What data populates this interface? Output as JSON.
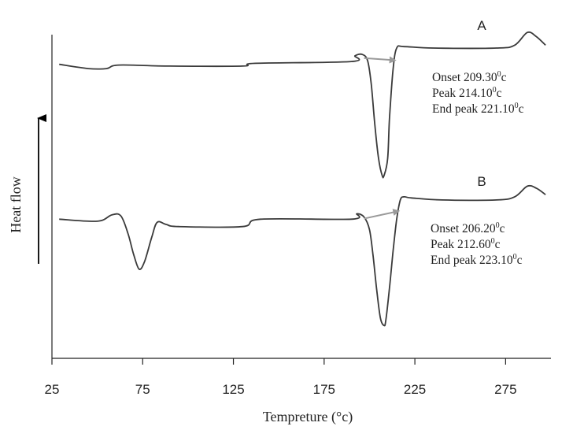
{
  "chart_data": {
    "type": "line",
    "title": "",
    "xlabel": "Tempreture (°c)",
    "ylabel": "Heat flow",
    "xlim": [
      25,
      300
    ],
    "x_ticks": [
      25,
      75,
      125,
      175,
      225,
      275
    ],
    "x_tick_labels": [
      "25",
      "75",
      "125",
      "175",
      "225",
      "275"
    ],
    "y_ticks_shown": false,
    "grid": false,
    "legend": "none",
    "series": [
      {
        "name": "A",
        "color": "#3a3a3a",
        "x": [
          29,
          45,
          55,
          62,
          90,
          130,
          137,
          190,
          192,
          196,
          199,
          201,
          203,
          205,
          207,
          208,
          210,
          211,
          213,
          215,
          219,
          235,
          270,
          280,
          287,
          292,
          297
        ],
        "y": [
          -0.15,
          -0.45,
          -0.45,
          -0.2,
          -0.27,
          -0.27,
          -0.08,
          0.05,
          0.45,
          0.55,
          0.1,
          -1.6,
          -4.5,
          -6.8,
          -8.0,
          -8.0,
          -6.8,
          -4.0,
          -0.5,
          1.0,
          1.1,
          1.0,
          1.0,
          1.2,
          2.1,
          1.8,
          1.2
        ]
      },
      {
        "name": "B",
        "color": "#3a3a3a",
        "x": [
          29,
          50,
          58,
          63,
          67,
          70,
          73,
          76,
          80,
          83,
          88,
          95,
          130,
          140,
          190,
          193,
          197,
          200,
          202,
          204,
          206,
          208,
          209,
          211,
          213,
          215,
          217,
          219,
          223,
          240,
          270,
          280,
          287,
          292,
          297
        ],
        "y": [
          0.5,
          0.3,
          0.9,
          0.8,
          -0.9,
          -2.8,
          -4.2,
          -3.5,
          -1.2,
          0.2,
          0.0,
          -0.2,
          -0.2,
          0.5,
          0.5,
          1.0,
          0.7,
          -0.5,
          -3.0,
          -6.2,
          -8.8,
          -9.5,
          -9.0,
          -6.0,
          -2.5,
          0.5,
          2.3,
          2.6,
          2.5,
          2.3,
          2.3,
          2.6,
          3.6,
          3.4,
          2.8
        ]
      }
    ],
    "curve_labels": [
      "A",
      "B"
    ],
    "annotations": [
      {
        "series": "A",
        "lines": [
          {
            "text": "Onset 209.30",
            "sup": "0",
            "unit": "c"
          },
          {
            "text": "Peak 214.10",
            "sup": "0",
            "unit": "c"
          },
          {
            "text": "End peak 221.10",
            "sup": "0",
            "unit": "c"
          }
        ]
      },
      {
        "series": "B",
        "lines": [
          {
            "text": "Onset 206.20",
            "sup": "0",
            "unit": "c"
          },
          {
            "text": "Peak 212.60",
            "sup": "0",
            "unit": "c"
          },
          {
            "text": "End peak 223.10",
            "sup": "0",
            "unit": "c"
          }
        ]
      }
    ],
    "arrows": [
      {
        "series": "A",
        "from_x": 197,
        "to_x": 214,
        "color": "#999999"
      },
      {
        "series": "B",
        "from_x": 197,
        "to_x": 216,
        "color": "#999999"
      }
    ]
  }
}
